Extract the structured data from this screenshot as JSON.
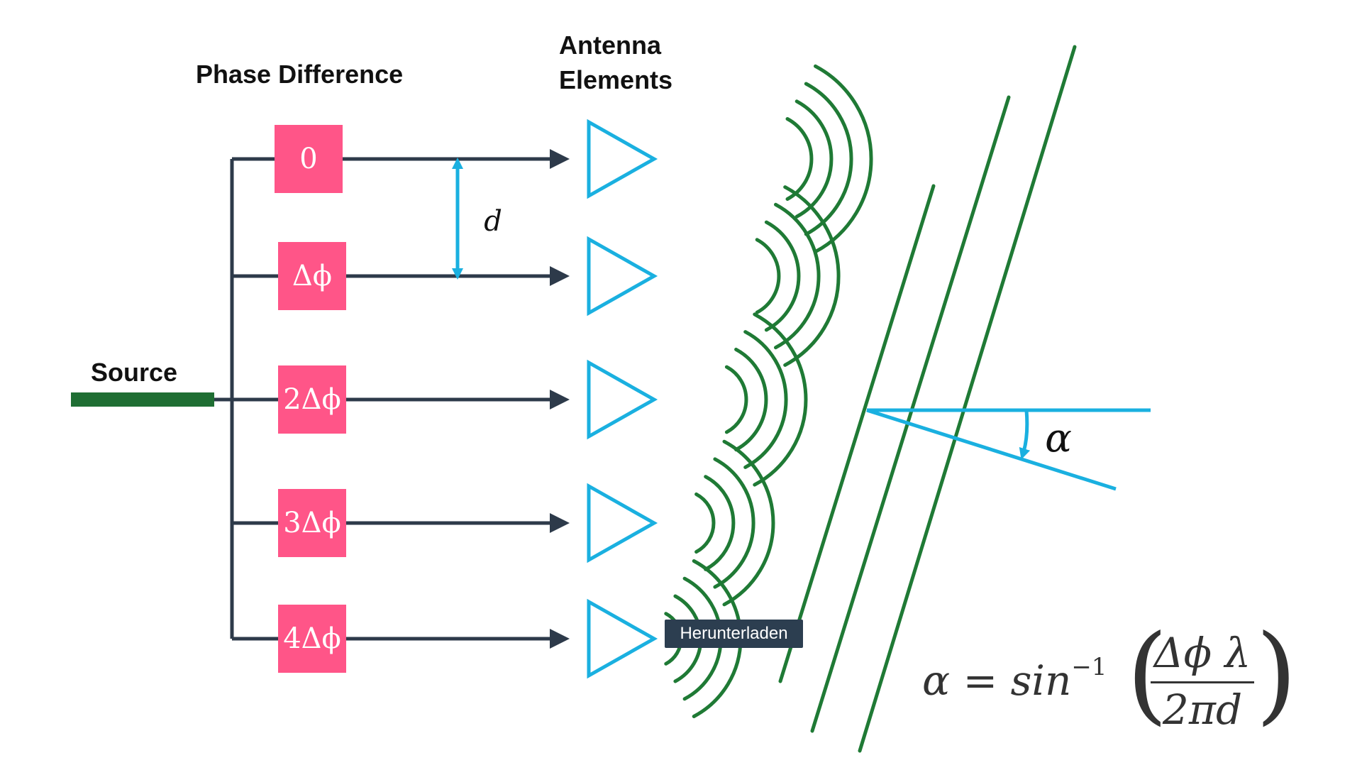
{
  "labels": {
    "phase_difference": "Phase Difference",
    "antenna_elements_line1": "Antenna",
    "antenna_elements_line2": "Elements",
    "source": "Source"
  },
  "phase_shifters": [
    "0",
    "Δϕ",
    "2Δϕ",
    "3Δϕ",
    "4Δϕ"
  ],
  "spacing_label": "d",
  "angle_label": "α",
  "tooltip": "Herunterladen",
  "formula": {
    "lhs": "α = sin",
    "exponent": "−1",
    "numerator": "Δϕ λ",
    "denominator": "2πd"
  },
  "colors": {
    "feed_line": "#2d3a4a",
    "phase_box": "#ff5588",
    "antenna": "#1ab0e0",
    "wave": "#1f7a35",
    "source_bar": "#1f6e33",
    "tooltip_bg": "#2c3e50"
  }
}
